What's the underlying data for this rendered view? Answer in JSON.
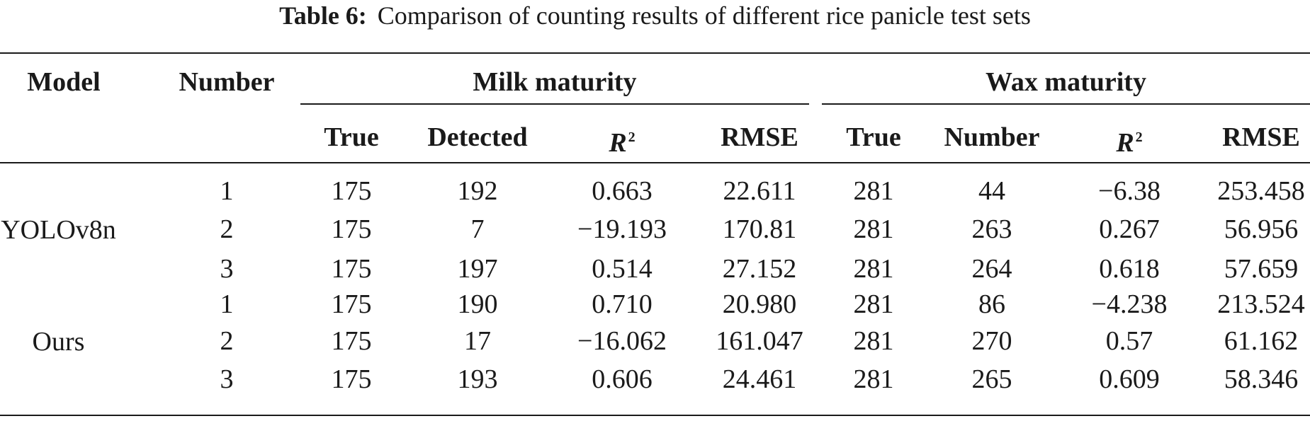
{
  "caption": {
    "label": "Table 6:",
    "text": "Comparison of counting results of different rice panicle test sets"
  },
  "header": {
    "model": "Model",
    "number": "Number",
    "group_milk": "Milk maturity",
    "group_wax": "Wax maturity",
    "sub": [
      "True",
      "Detected",
      "R",
      "RMSE",
      "True",
      "Number",
      "R",
      "RMSE"
    ],
    "r_superscript": "2"
  },
  "groups": [
    {
      "model": "YOLOv8n",
      "rows": [
        [
          "1",
          "175",
          "192",
          "0.663",
          "22.611",
          "281",
          "44",
          "−6.38",
          "253.458"
        ],
        [
          "2",
          "175",
          "7",
          "−19.193",
          "170.81",
          "281",
          "263",
          "0.267",
          "56.956"
        ],
        [
          "3",
          "175",
          "197",
          "0.514",
          "27.152",
          "281",
          "264",
          "0.618",
          "57.659"
        ]
      ]
    },
    {
      "model": "Ours",
      "rows": [
        [
          "1",
          "175",
          "190",
          "0.710",
          "20.980",
          "281",
          "86",
          "−4.238",
          "213.524"
        ],
        [
          "2",
          "175",
          "17",
          "−16.062",
          "161.047",
          "281",
          "270",
          "0.57",
          "61.162"
        ],
        [
          "3",
          "175",
          "193",
          "0.606",
          "24.461",
          "281",
          "265",
          "0.609",
          "58.346"
        ]
      ]
    }
  ]
}
